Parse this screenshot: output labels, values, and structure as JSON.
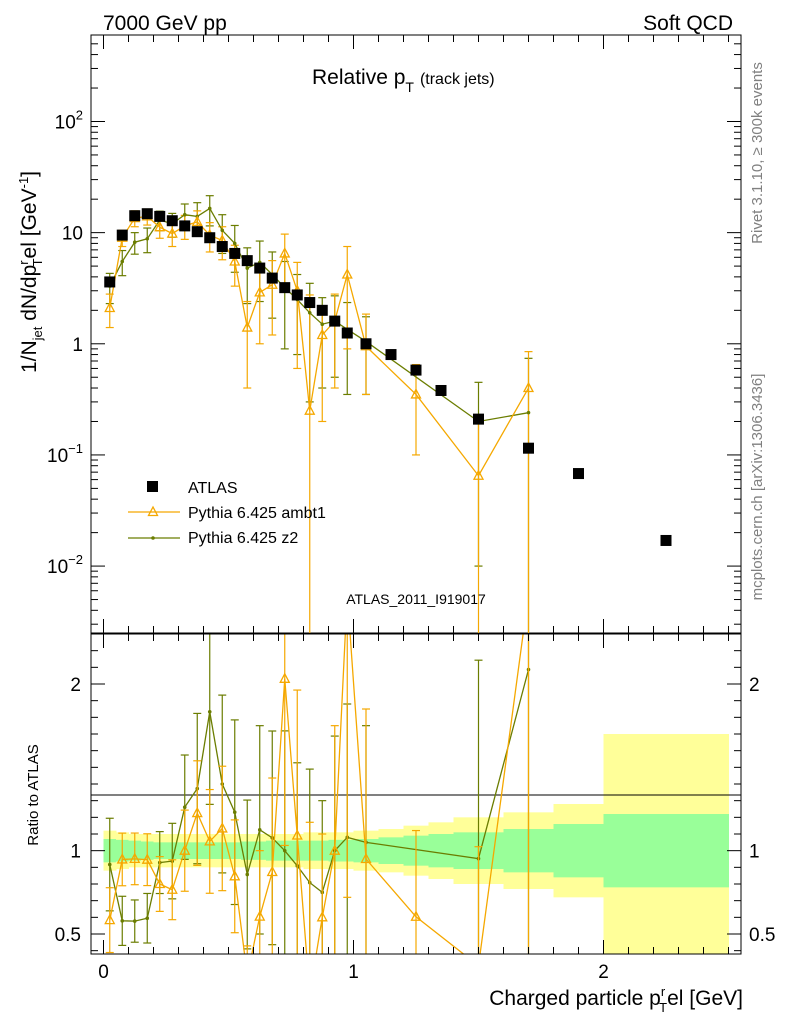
{
  "header": {
    "left": "7000 GeV pp",
    "right": "Soft QCD"
  },
  "side_labels": {
    "rivet": "Rivet 3.1.10, ≥ 300k events",
    "mcplots": "mcplots.cern.ch [arXiv:1306.3436]"
  },
  "chart_data": {
    "type": "scatter",
    "title": "Relative p",
    "title_sub": "T",
    "title_note": "(track jets)",
    "analysis_id": "ATLAS_2011_I919017",
    "xlabel": "Charged particle p",
    "xlabel_sub": "T",
    "xlabel_sup": "r",
    "xlabel_tail": "el [GeV]",
    "ylabel": "1/N_jet dN/dp_T^rel [GeV^-1]",
    "ylabel_parts": {
      "a": "1/N",
      "a_sub": "jet",
      "b": " dN/dp",
      "b_sup": "r",
      "b_sub": "T",
      "c": "el [GeV",
      "c_sup": "-1",
      "d": "]"
    },
    "ratio_ylabel": "Ratio to ATLAS",
    "xlim": [
      -0.05,
      2.55
    ],
    "ylim": [
      0.0025,
      600
    ],
    "ratio_ylim": [
      0.38,
      2.3
    ],
    "x_ticks": [
      0,
      1,
      2
    ],
    "x_tick_labels": [
      "0",
      "1",
      "2"
    ],
    "y_ticks": [
      {
        "value": 0.01,
        "base": "10",
        "exp": "−2"
      },
      {
        "value": 0.1,
        "base": "10",
        "exp": "−1"
      },
      {
        "value": 1,
        "label": "1"
      },
      {
        "value": 10,
        "label": "10"
      },
      {
        "value": 100,
        "base": "10",
        "exp": "2"
      }
    ],
    "ratio_ticks": [
      {
        "value": 0.5,
        "label": "0.5"
      },
      {
        "value": 1,
        "label": "1"
      },
      {
        "value": 2,
        "label": "2"
      }
    ],
    "legend_position": "lower-left",
    "series": [
      {
        "name": "ATLAS",
        "color": "#000000",
        "marker": "square",
        "x": [
          0.025,
          0.075,
          0.125,
          0.175,
          0.225,
          0.275,
          0.325,
          0.375,
          0.425,
          0.475,
          0.525,
          0.575,
          0.625,
          0.675,
          0.725,
          0.775,
          0.825,
          0.875,
          0.925,
          0.975,
          1.05,
          1.15,
          1.25,
          1.35,
          1.5,
          1.7,
          1.9,
          2.25
        ],
        "y": [
          3.6,
          9.5,
          14.2,
          14.8,
          14.0,
          12.8,
          11.5,
          10.2,
          9.0,
          7.5,
          6.5,
          5.6,
          4.8,
          3.9,
          3.2,
          2.75,
          2.35,
          2.0,
          1.6,
          1.25,
          1.0,
          0.8,
          0.58,
          0.38,
          0.21,
          0.115,
          0.068,
          0.017
        ]
      },
      {
        "name": "Pythia 6.425 ambt1",
        "color": "#F5A800",
        "marker": "triangle",
        "x": [
          0.025,
          0.075,
          0.125,
          0.175,
          0.225,
          0.275,
          0.325,
          0.375,
          0.425,
          0.475,
          0.525,
          0.575,
          0.625,
          0.675,
          0.725,
          0.775,
          0.825,
          0.875,
          0.925,
          0.975,
          1.05,
          1.25,
          1.5,
          1.7
        ],
        "y": [
          2.1,
          9.0,
          13.5,
          14.0,
          11.2,
          9.8,
          11.5,
          12.5,
          9.5,
          8.5,
          5.5,
          1.4,
          2.9,
          3.4,
          6.5,
          3.0,
          0.25,
          1.2,
          1.6,
          4.2,
          0.95,
          0.35,
          0.065,
          0.4
        ],
        "err_lo": [
          0.7,
          1.5,
          2.2,
          2.3,
          2.3,
          2.3,
          2.8,
          3.2,
          2.8,
          2.8,
          2.2,
          1.0,
          1.9,
          2.2,
          3.2,
          2.4,
          0.248,
          1.0,
          1.2,
          3.3,
          0.6,
          0.25,
          0.064,
          0.399
        ],
        "err_hi": [
          0.7,
          1.5,
          2.2,
          2.3,
          2.3,
          2.3,
          2.8,
          3.2,
          2.8,
          2.8,
          2.2,
          1.0,
          1.9,
          2.2,
          3.2,
          2.4,
          2.5,
          1.0,
          1.2,
          3.3,
          0.9,
          0.3,
          0.15,
          0.45
        ]
      },
      {
        "name": "Pythia 6.425 z2",
        "color": "#6B7D00",
        "marker": "dot",
        "x": [
          0.025,
          0.075,
          0.125,
          0.175,
          0.225,
          0.275,
          0.325,
          0.375,
          0.425,
          0.475,
          0.525,
          0.575,
          0.625,
          0.675,
          0.725,
          0.775,
          0.825,
          0.875,
          0.925,
          0.975,
          1.05,
          1.5,
          1.7
        ],
        "y": [
          3.3,
          5.5,
          8.2,
          8.8,
          13.0,
          12.0,
          14.5,
          14.0,
          16.5,
          10.5,
          8.0,
          4.8,
          5.4,
          4.2,
          3.2,
          2.5,
          1.9,
          1.5,
          1.6,
          1.35,
          1.05,
          0.2,
          0.24
        ],
        "err_lo": [
          1.0,
          1.4,
          1.8,
          2.2,
          2.6,
          2.9,
          3.6,
          4.6,
          5.0,
          4.0,
          3.6,
          2.5,
          3.0,
          2.5,
          2.3,
          1.7,
          1.6,
          1.1,
          1.1,
          1.0,
          0.7,
          0.19,
          0.239
        ],
        "err_hi": [
          1.0,
          1.4,
          1.8,
          2.2,
          2.6,
          2.9,
          3.6,
          4.6,
          5.0,
          4.0,
          3.6,
          2.5,
          3.0,
          2.5,
          2.3,
          1.7,
          1.6,
          1.1,
          1.1,
          1.0,
          0.7,
          0.25,
          0.5
        ]
      }
    ],
    "uncertainty_bands": {
      "edges": [
        0.0,
        0.05,
        0.1,
        0.15,
        0.2,
        0.25,
        0.3,
        0.35,
        0.4,
        0.45,
        0.5,
        0.55,
        0.6,
        0.65,
        0.7,
        0.75,
        0.8,
        0.85,
        0.9,
        0.95,
        1.0,
        1.1,
        1.2,
        1.3,
        1.4,
        1.6,
        1.8,
        2.0,
        2.5
      ],
      "inner": [
        0.07,
        0.065,
        0.06,
        0.055,
        0.05,
        0.05,
        0.05,
        0.05,
        0.05,
        0.05,
        0.05,
        0.055,
        0.055,
        0.06,
        0.06,
        0.06,
        0.06,
        0.06,
        0.065,
        0.065,
        0.07,
        0.08,
        0.09,
        0.1,
        0.11,
        0.13,
        0.16,
        0.22,
        0.26
      ],
      "outer": [
        0.12,
        0.11,
        0.1,
        0.1,
        0.1,
        0.1,
        0.1,
        0.1,
        0.1,
        0.1,
        0.1,
        0.1,
        0.1,
        0.1,
        0.1,
        0.1,
        0.11,
        0.11,
        0.11,
        0.11,
        0.12,
        0.13,
        0.15,
        0.17,
        0.2,
        0.23,
        0.28,
        0.7,
        0.7
      ],
      "inner_color": "#99FF99",
      "outer_color": "#FFFF99"
    }
  }
}
